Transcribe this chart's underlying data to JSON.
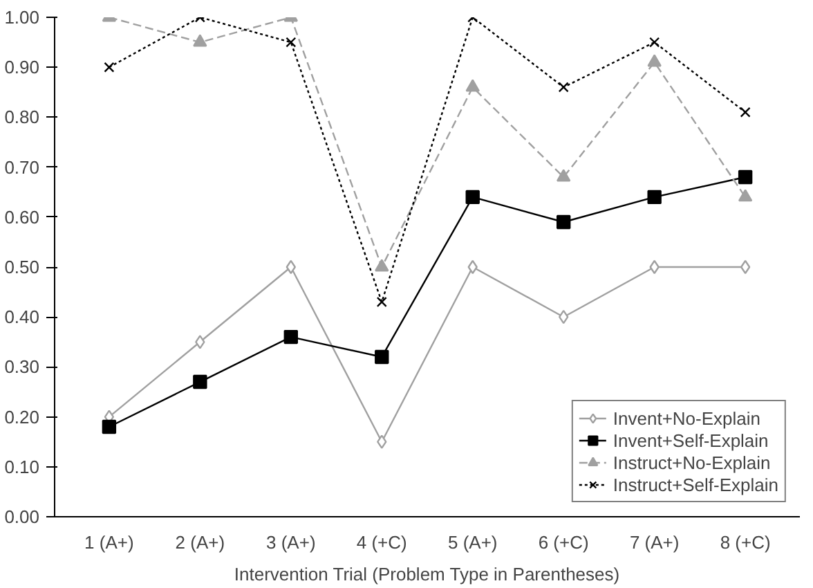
{
  "chart_data": {
    "type": "line",
    "xlabel": "Intervention Trial (Problem Type in Parentheses)",
    "categories": [
      "1 (A+)",
      "2 (A+)",
      "3 (A+)",
      "4 (+C)",
      "5 (A+)",
      "6 (+C)",
      "7 (A+)",
      "8 (+C)"
    ],
    "series": [
      {
        "name": "Invent+No-Explain",
        "color": "#a0a0a0",
        "marker": "diamond",
        "line_style": "solid",
        "values": [
          0.2,
          0.35,
          0.5,
          0.15,
          0.5,
          0.4,
          0.5,
          0.5
        ]
      },
      {
        "name": "Invent+Self-Explain",
        "color": "#000000",
        "marker": "square",
        "line_style": "solid",
        "values": [
          0.18,
          0.27,
          0.36,
          0.32,
          0.64,
          0.59,
          0.64,
          0.68
        ]
      },
      {
        "name": "Instruct+No-Explain",
        "color": "#a0a0a0",
        "marker": "triangle",
        "line_style": "dashed",
        "values": [
          1.0,
          0.95,
          1.0,
          0.5,
          0.86,
          0.68,
          0.91,
          0.64
        ]
      },
      {
        "name": "Instruct+Self-Explain",
        "color": "#000000",
        "marker": "cross",
        "line_style": "dotted",
        "values": [
          0.9,
          1.0,
          0.95,
          0.43,
          1.0,
          0.86,
          0.95,
          0.81
        ]
      }
    ],
    "ylim": [
      0,
      1
    ],
    "yticks": [
      {
        "value": 0,
        "label": "0.00"
      },
      {
        "value": 0.1,
        "label": "0.10"
      },
      {
        "value": 0.2,
        "label": "0.20"
      },
      {
        "value": 0.3,
        "label": "0.30"
      },
      {
        "value": 0.4,
        "label": "0.40"
      },
      {
        "value": 0.5,
        "label": "0.50"
      },
      {
        "value": 0.6,
        "label": "0.60"
      },
      {
        "value": 0.7,
        "label": "0.70"
      },
      {
        "value": 0.8,
        "label": "0.80"
      },
      {
        "value": 0.9,
        "label": "0.90"
      },
      {
        "value": 1,
        "label": "1.00"
      }
    ],
    "grid": false,
    "legend": "bottom right"
  }
}
